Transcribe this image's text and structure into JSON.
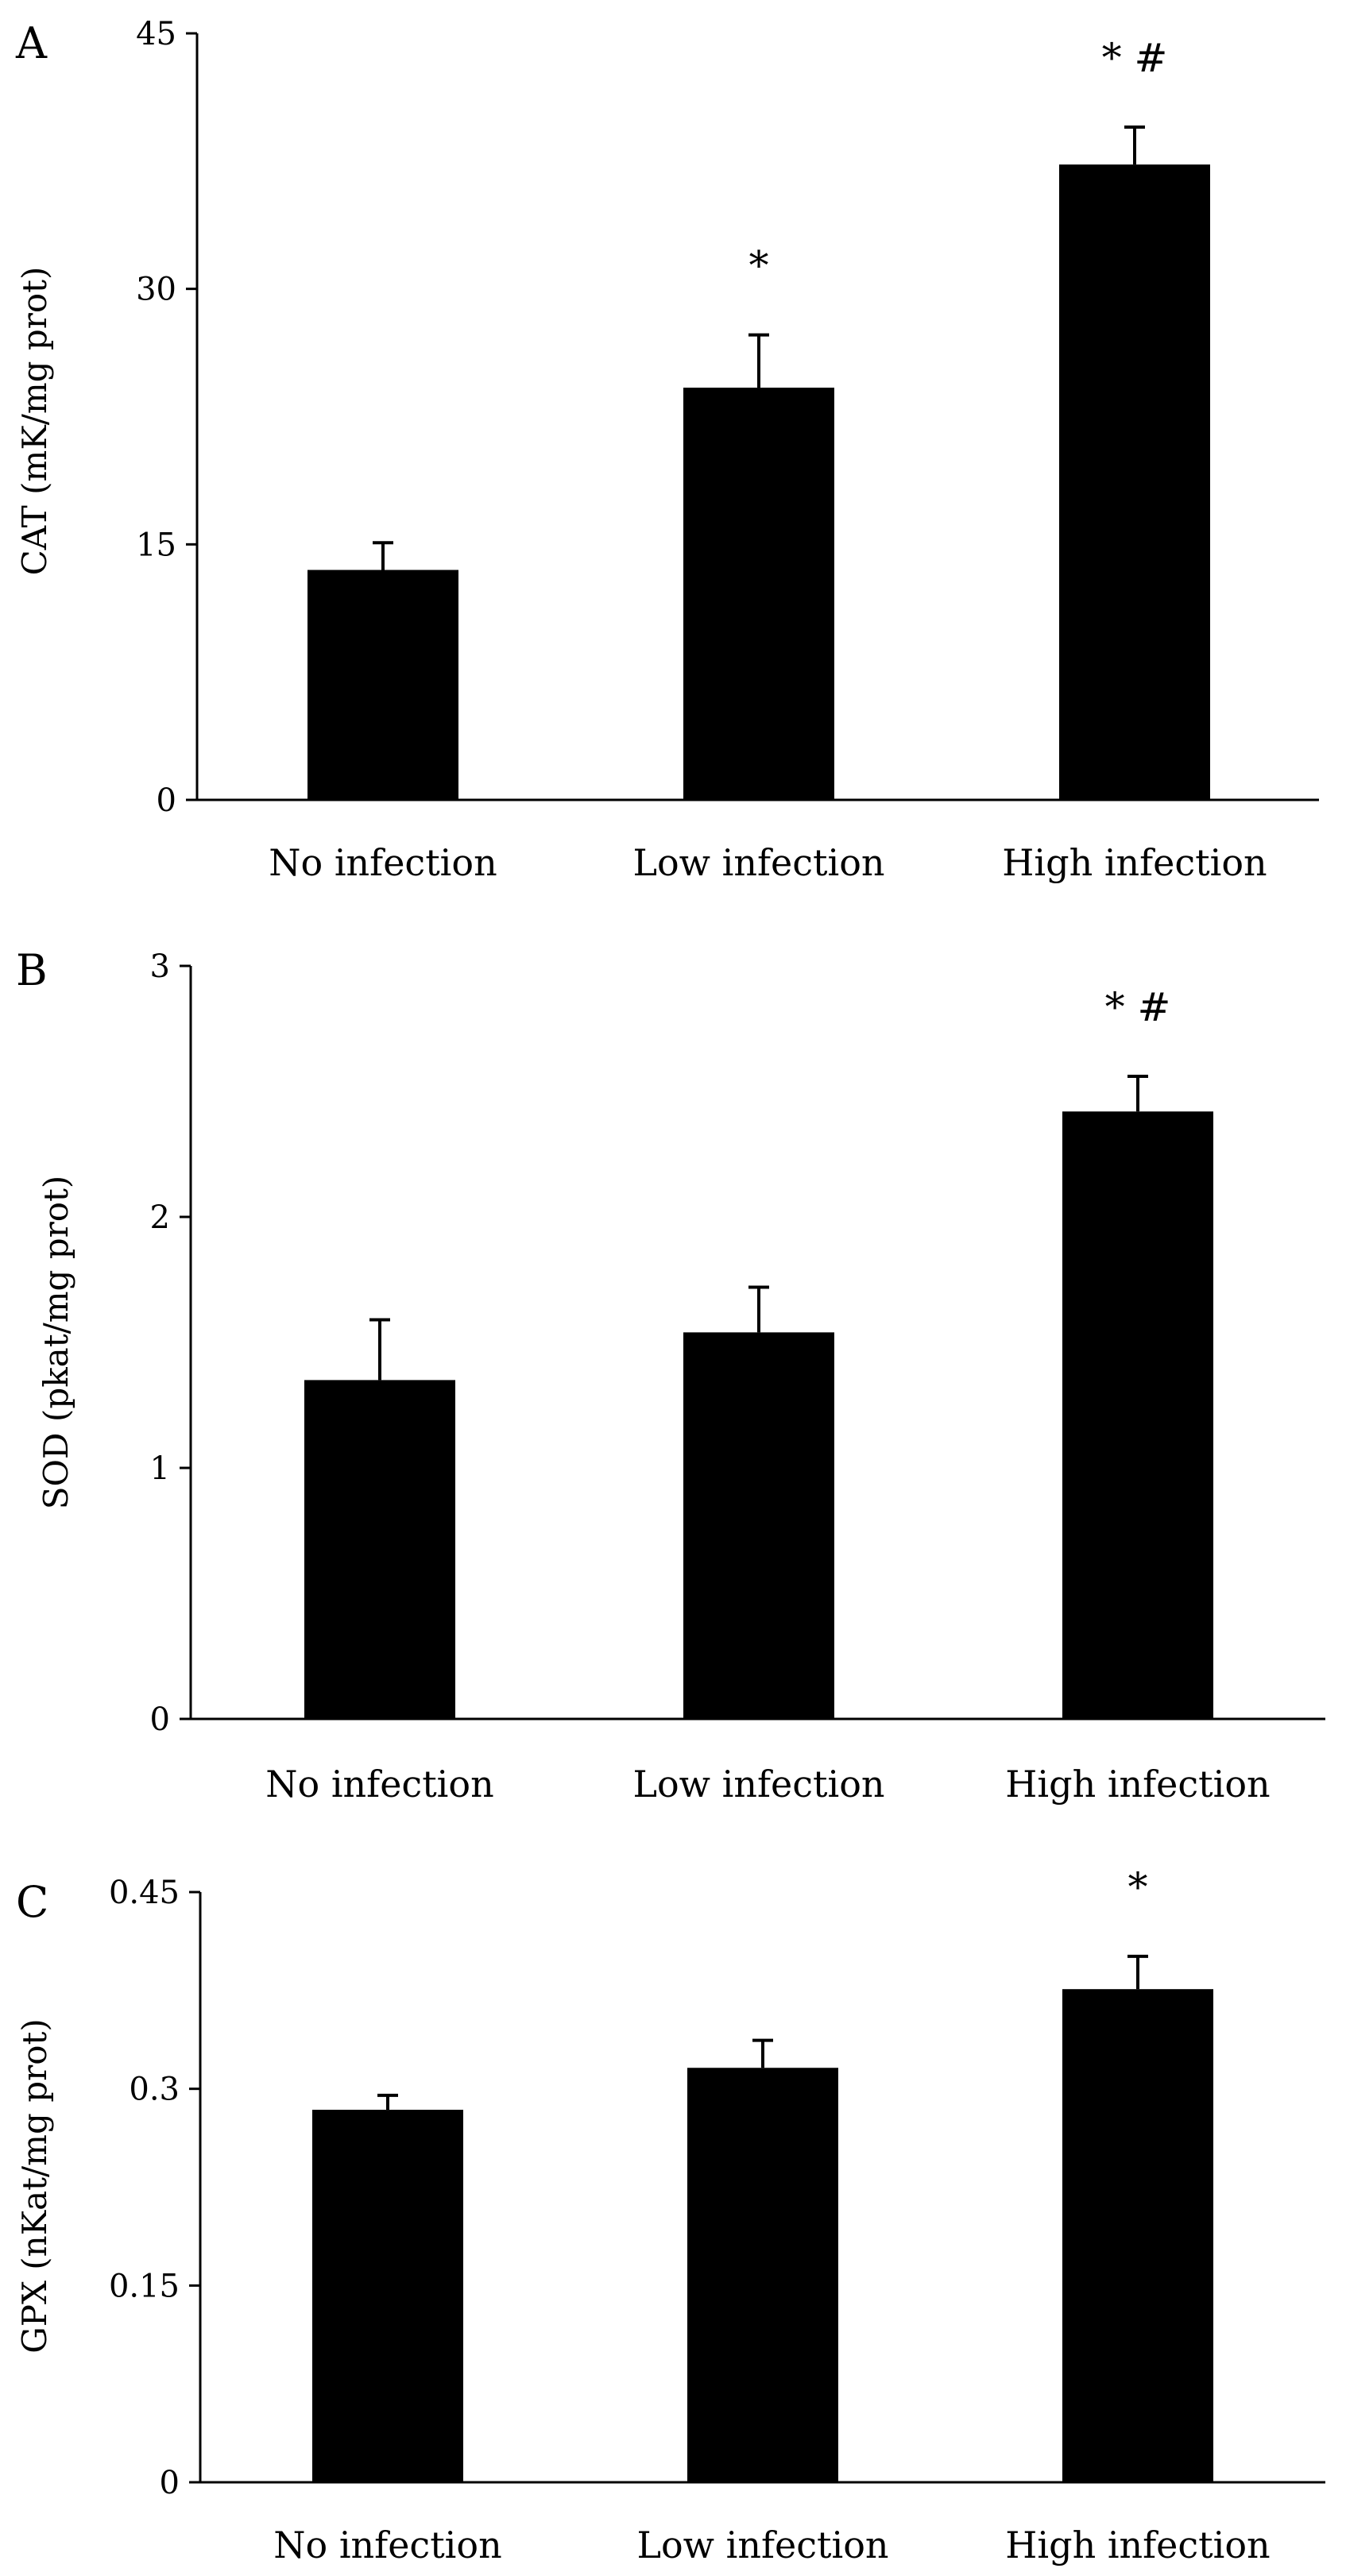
{
  "chart_data": [
    {
      "panel": "A",
      "type": "bar",
      "categories": [
        "No infection",
        "Low infection",
        "High infection"
      ],
      "values": [
        13.5,
        24.2,
        37.3
      ],
      "errors": [
        1.6,
        3.1,
        2.2
      ],
      "annotations": [
        "",
        "*",
        "* #"
      ],
      "ylabel": "CAT (mK/mg prot)",
      "xlabel": "",
      "ylim": [
        0,
        45
      ],
      "yticks": [
        0,
        15,
        30,
        45
      ],
      "ytick_labels": [
        "0",
        "15",
        "30",
        "45"
      ],
      "color": "#000000"
    },
    {
      "panel": "B",
      "type": "bar",
      "categories": [
        "No infection",
        "Low infection",
        "High infection"
      ],
      "values": [
        1.35,
        1.54,
        2.42
      ],
      "errors": [
        0.24,
        0.18,
        0.14
      ],
      "annotations": [
        "",
        "",
        "* #"
      ],
      "ylabel": "SOD (pkat/mg prot)",
      "xlabel": "",
      "ylim": [
        0,
        3
      ],
      "yticks": [
        0,
        1,
        2,
        3
      ],
      "ytick_labels": [
        "0",
        "1",
        "2",
        "3"
      ],
      "color": "#000000"
    },
    {
      "panel": "C",
      "type": "bar",
      "categories": [
        "No infection",
        "Low infection",
        "High infection"
      ],
      "values": [
        0.284,
        0.316,
        0.376
      ],
      "errors": [
        0.011,
        0.021,
        0.025
      ],
      "annotations": [
        "",
        "",
        "*"
      ],
      "ylabel": "GPX (nKat/mg prot)",
      "xlabel": "",
      "ylim": [
        0,
        0.45
      ],
      "yticks": [
        0,
        0.15,
        0.3,
        0.45
      ],
      "ytick_labels": [
        "0",
        "0.15",
        "0.3",
        "0.45"
      ],
      "color": "#000000"
    }
  ]
}
